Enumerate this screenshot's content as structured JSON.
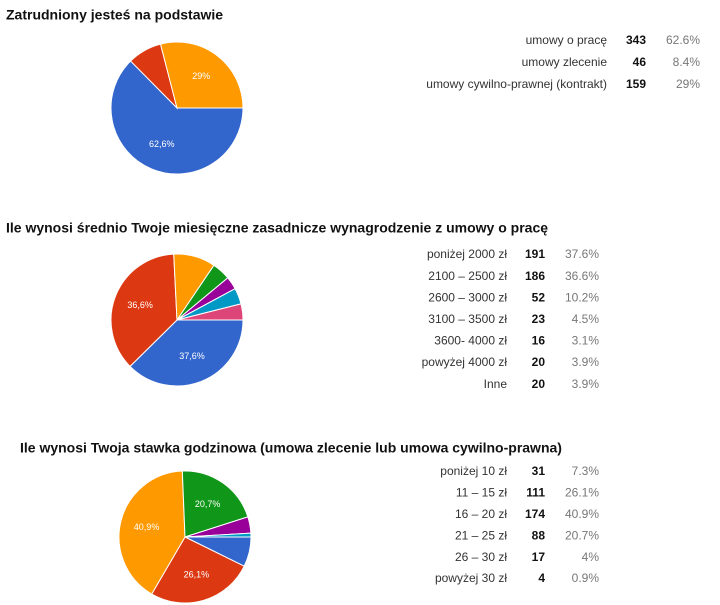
{
  "chart_data": [
    {
      "type": "pie",
      "title": "Zatrudniony jesteś na podstawie",
      "categories": [
        "umowy o pracę",
        "umowy zlecenie",
        "umowy cywilno-prawnej (kontrakt)"
      ],
      "values": [
        343,
        46,
        159
      ],
      "percent_labels": [
        "62.6%",
        "8.4%",
        "29%"
      ],
      "slice_labels": [
        "62,6%",
        null,
        "29%"
      ],
      "colors": [
        "#3366cc",
        "#dc3912",
        "#ff9900"
      ]
    },
    {
      "type": "pie",
      "title": "Ile wynosi średnio Twoje miesięczne zasadnicze wynagrodzenie z umowy o pracę",
      "categories": [
        "poniżej 2000 zł",
        "2100 – 2500 zł",
        "2600 – 3000 zł",
        "3100 – 3500 zł",
        "3600- 4000 zł",
        "powyżej 4000 zł",
        "Inne"
      ],
      "values": [
        191,
        186,
        52,
        23,
        16,
        20,
        20
      ],
      "percent_labels": [
        "37.6%",
        "36.6%",
        "10.2%",
        "4.5%",
        "3.1%",
        "3.9%",
        "3.9%"
      ],
      "slice_labels": [
        "37,6%",
        "36,6%",
        null,
        null,
        null,
        null,
        null
      ],
      "colors": [
        "#3366cc",
        "#dc3912",
        "#ff9900",
        "#109618",
        "#990099",
        "#0099c6",
        "#dd4477"
      ]
    },
    {
      "type": "pie",
      "title": "Ile wynosi Twoja stawka godzinowa (umowa zlecenie lub umowa cywilno-prawna)",
      "categories": [
        "poniżej 10 zł",
        "11 – 15 zł",
        "16 – 20 zł",
        "21 – 25 zł",
        "26 – 30 zł",
        "powyżej 30 zł"
      ],
      "values": [
        31,
        111,
        174,
        88,
        17,
        4
      ],
      "percent_labels": [
        "7.3%",
        "26.1%",
        "40.9%",
        "20.7%",
        "4%",
        "0.9%"
      ],
      "slice_labels": [
        null,
        "26,1%",
        "40,9%",
        "20,7%",
        null,
        null
      ],
      "colors": [
        "#3366cc",
        "#dc3912",
        "#ff9900",
        "#109618",
        "#990099",
        "#0099c6"
      ]
    }
  ]
}
